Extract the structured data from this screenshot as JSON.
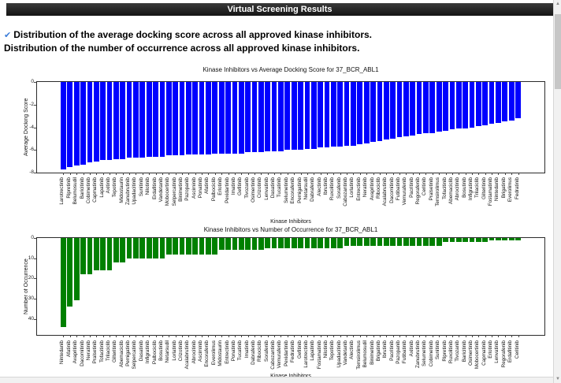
{
  "header": {
    "title": "Virtual Screening Results"
  },
  "notes": {
    "check_icon": "✔",
    "line1": "Distribution of the average docking score across all approved kinase inhibitors.",
    "line2": "Distribution of the number of occurrence across all approved kinase inhibitors."
  },
  "colors": {
    "bar_blue": "#0000ff",
    "bar_green": "#008000",
    "header_bg": "#1c1c1c",
    "check_blue": "#3c7dd9"
  },
  "chart_data": [
    {
      "type": "bar",
      "title": "Kinase Inhibitors vs Average Docking Score for 37_BCR_ABL1",
      "xlabel": "Kinase Inhibitors",
      "ylabel": "Average Docking Score",
      "ylim": [
        0,
        -8
      ],
      "yticks": [
        0,
        -2,
        -4,
        -6,
        -8
      ],
      "grid": false,
      "bar_color": "#0000ff",
      "categories": [
        "Larotrectinib",
        "Ripretinib",
        "Belumosudil",
        "Baricitinib",
        "Cobimetinib",
        "Capmatinib",
        "Lapatinib",
        "Axitinib",
        "Tepotinib",
        "Midostaurin",
        "Zanubrutinib",
        "Upadacitinib",
        "Sunitinib",
        "Nilotinib",
        "Erdafitinib",
        "Vandetanib",
        "Mobocertinib",
        "Selpercatinib",
        "Binimetinib",
        "Pazopanib",
        "Asciminib",
        "Ponatinib",
        "Afatinib",
        "Palbociclib",
        "Erlotinib",
        "Pexidartinib",
        "Imatinib",
        "Gefitinib",
        "Tivozanib",
        "Osimertinib",
        "Crizotinib",
        "Lenvatinib",
        "Dasatinib",
        "Tucatinib",
        "Selumetinib",
        "Encorafenib",
        "Pemigatinib",
        "Netarsudil",
        "Dabrafenib",
        "Alectinib",
        "Ibrutinib",
        "Ruxolitinib",
        "Sorafenib",
        "Cabozantinib",
        "Lorlatinib",
        "Entrectinib",
        "Neratinib",
        "Avapritinib",
        "Ribociclib",
        "Acalabrutinib",
        "Dacomitinib",
        "Futibatinib",
        "Vemurafenib",
        "Pacritinib",
        "Regorafenib",
        "Ceritinib",
        "Pralsetinib",
        "Temsirolimus",
        "Tofacitinib",
        "Abemaciclib",
        "Abrocitinib",
        "Bosutinib",
        "Infigratinib",
        "Trilaciclib",
        "Gilteritinib",
        "Fostamatinib",
        "Nintedanib",
        "Brigatinib",
        "Everolimus",
        "Fedratinib"
      ],
      "values": [
        -7.7,
        -7.5,
        -7.4,
        -7.3,
        -7.1,
        -7.0,
        -6.9,
        -6.9,
        -6.8,
        -6.8,
        -6.7,
        -6.7,
        -6.7,
        -6.6,
        -6.6,
        -6.6,
        -6.5,
        -6.5,
        -6.5,
        -6.4,
        -6.4,
        -6.4,
        -6.4,
        -6.3,
        -6.3,
        -6.3,
        -6.3,
        -6.3,
        -6.2,
        -6.2,
        -6.2,
        -6.1,
        -6.1,
        -6.1,
        -6.0,
        -6.0,
        -6.0,
        -5.9,
        -5.9,
        -5.8,
        -5.8,
        -5.7,
        -5.7,
        -5.6,
        -5.6,
        -5.5,
        -5.4,
        -5.3,
        -5.2,
        -5.1,
        -5.0,
        -4.9,
        -4.8,
        -4.7,
        -4.6,
        -4.5,
        -4.5,
        -4.4,
        -4.3,
        -4.2,
        -4.1,
        -4.1,
        -4.0,
        -3.9,
        -3.8,
        -3.7,
        -3.6,
        -3.5,
        -3.4,
        -3.2
      ]
    },
    {
      "type": "bar",
      "title": "Kinase Inhibitors vs Number of Occurrence for 37_BCR_ABL1",
      "xlabel": "Kinase Inhibitors",
      "ylabel": "Number of Occurrence",
      "ylim": [
        0,
        48
      ],
      "yticks": [
        0,
        10,
        20,
        30,
        40
      ],
      "y_inverted": true,
      "grid": false,
      "bar_color": "#008000",
      "categories": [
        "Nintedanib",
        "Afatinib",
        "Avapritinib",
        "Dacomitinib",
        "Neratinib",
        "Pralsetinib",
        "Tofacitinib",
        "Trilaciclib",
        "Gilteritinib",
        "Abemaciclib",
        "Pemigatinib",
        "Selpercatinib",
        "Dasatinib",
        "Infigratinib",
        "Palbociclib",
        "Bosutinib",
        "Netarsudil",
        "Lorlatinib",
        "Crizotinib",
        "Acalabrutinib",
        "Abrocitinib",
        "Asciminib",
        "Encorafenib",
        "Everolimus",
        "Midostaurin",
        "Entrectinib",
        "Ponatinib",
        "Tucatinib",
        "Imatinib",
        "Dabrafenib",
        "Ribociclib",
        "Sorafenib",
        "Cabozantinib",
        "Vemurafenib",
        "Pexidartinib",
        "Fedratinib",
        "Gefitinib",
        "Larotrectinib",
        "Lapatinib",
        "Fostamatinib",
        "Nilotinib",
        "Tepotinib",
        "Upadacitinib",
        "Vandetanib",
        "Alectinib",
        "Temsirolimus",
        "Belumosudil",
        "Binimetinib",
        "Brigatinib",
        "Ibrutinib",
        "Pacritinib",
        "Pazopanib",
        "Futibatinib",
        "Axitinib",
        "Zanubrutinib",
        "Selumetinib",
        "Cobimetinib",
        "Sunitinib",
        "Ripretinib",
        "Ruxolitinib",
        "Tivozanib",
        "Baricitinib",
        "Osimertinib",
        "Mobocertinib",
        "Capmatinib",
        "Erlotinib",
        "Lenvatinib",
        "Regorafenib",
        "Erdafitinib",
        "Ceritinib"
      ],
      "values": [
        44,
        34,
        31,
        18,
        18,
        16,
        16,
        16,
        12,
        12,
        10,
        10,
        10,
        10,
        10,
        10,
        8,
        8,
        8,
        8,
        8,
        8,
        8,
        8,
        6,
        6,
        6,
        6,
        6,
        6,
        6,
        5,
        5,
        5,
        5,
        5,
        5,
        5,
        5,
        5,
        5,
        5,
        5,
        4,
        4,
        4,
        4,
        4,
        4,
        4,
        4,
        4,
        4,
        4,
        4,
        4,
        4,
        4,
        2,
        2,
        2,
        2,
        2,
        2,
        2,
        1,
        1,
        1,
        1,
        1
      ]
    }
  ]
}
